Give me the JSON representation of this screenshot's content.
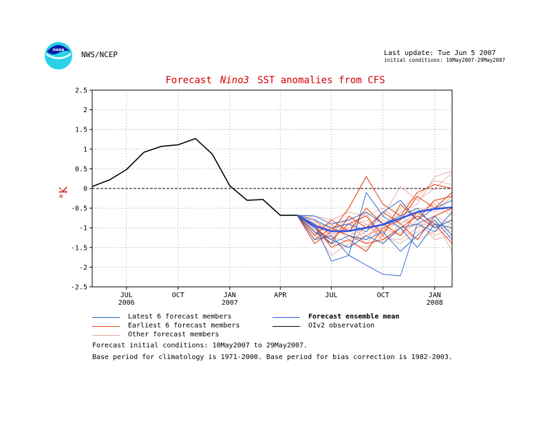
{
  "header": {
    "org": "NWS/NCEP",
    "last_update": "Last update: Tue Jun 5 2007",
    "initial_conditions": "initial conditions: 10May2007-29May2007",
    "logo_text": "noaa"
  },
  "title": {
    "prefix": "Forecast",
    "region": "Nino3",
    "suffix": "SST anomalies from CFS"
  },
  "colors": {
    "title": "#d40000",
    "latest": "#1f5fc8",
    "earliest": "#e5451a",
    "other": "#e8a79a",
    "mean": "#2f54e8",
    "observation": "#000000"
  },
  "legend": {
    "latest": "Latest 6 forecast members",
    "earliest": "Earliest 6 forecast members",
    "other": "Other forecast members",
    "mean": "Forecast ensemble mean",
    "observation": "OIv2 observation"
  },
  "notes": {
    "line1": "Forecast initial conditions: 10May2007 to 29May2007.",
    "line2": "Base period for climatology is 1971-2000. Base period for bias correction is 1982-2003."
  },
  "chart_data": {
    "type": "line",
    "title": "Forecast Nino3 SST anomalies from CFS",
    "ylabel": "°K",
    "ylim": [
      -2.5,
      2.5
    ],
    "yticks": [
      "2.5",
      "2",
      "1.5",
      "1",
      "0.5",
      "0",
      "-0.5",
      "-1",
      "-1.5",
      "-2",
      "-2.5"
    ],
    "xlim": [
      "2006-05-15",
      "2008-02-15"
    ],
    "xticks": [
      {
        "date": "2006-07-15",
        "label": "JUL",
        "sub": "2006"
      },
      {
        "date": "2006-10-15",
        "label": "OCT",
        "sub": ""
      },
      {
        "date": "2007-01-15",
        "label": "JAN",
        "sub": "2007"
      },
      {
        "date": "2007-04-15",
        "label": "APR",
        "sub": ""
      },
      {
        "date": "2007-07-15",
        "label": "JUL",
        "sub": ""
      },
      {
        "date": "2007-10-15",
        "label": "OCT",
        "sub": ""
      },
      {
        "date": "2008-01-15",
        "label": "JAN",
        "sub": "2008"
      }
    ],
    "grid": true,
    "zero_line": true,
    "observation": {
      "dates": [
        "2006-05-15",
        "2006-06-15",
        "2006-07-15",
        "2006-08-15",
        "2006-09-15",
        "2006-10-15",
        "2006-11-15",
        "2006-12-15",
        "2007-01-15",
        "2007-02-15",
        "2007-03-15",
        "2007-04-15",
        "2007-05-15"
      ],
      "values": [
        0.05,
        0.22,
        0.48,
        0.92,
        1.07,
        1.11,
        1.27,
        0.87,
        0.07,
        -0.3,
        -0.28,
        -0.68,
        -0.68
      ]
    },
    "forecast_dates": [
      "2007-05-15",
      "2007-06-15",
      "2007-07-15",
      "2007-08-15",
      "2007-09-15",
      "2007-10-15",
      "2007-11-15",
      "2007-12-15",
      "2008-01-15",
      "2008-02-15"
    ],
    "ensemble_mean": [
      -0.68,
      -0.95,
      -1.09,
      -1.08,
      -1.0,
      -0.92,
      -0.76,
      -0.6,
      -0.52,
      -0.48
    ],
    "latest_members": [
      [
        -0.68,
        -0.9,
        -1.85,
        -1.7,
        -1.95,
        -2.18,
        -2.22,
        -0.9,
        -0.7,
        -1.2
      ],
      [
        -0.68,
        -1.3,
        -1.2,
        -1.7,
        -0.1,
        -0.7,
        -1.0,
        -1.5,
        -0.9,
        -1.0
      ],
      [
        -0.68,
        -0.8,
        -1.0,
        -0.9,
        -1.1,
        -0.6,
        -0.3,
        -0.8,
        -0.5,
        -0.3
      ],
      [
        -0.68,
        -1.0,
        -1.4,
        -1.2,
        -1.3,
        -1.1,
        -1.6,
        -1.2,
        -0.8,
        -1.3
      ],
      [
        -0.68,
        -0.7,
        -0.9,
        -0.8,
        -0.6,
        -0.9,
        -0.7,
        -0.5,
        -1.0,
        -0.8
      ],
      [
        -0.68,
        -1.1,
        -1.3,
        -1.5,
        -1.2,
        -1.4,
        -1.0,
        -0.9,
        -1.1,
        -0.6
      ]
    ],
    "earliest_members": [
      [
        -0.68,
        -1.4,
        -1.1,
        -0.5,
        0.3,
        -0.4,
        -0.7,
        -0.1,
        0.1,
        0.0
      ],
      [
        -0.68,
        -1.0,
        -1.3,
        -0.9,
        -0.7,
        -1.2,
        -0.4,
        -0.8,
        -0.3,
        -0.2
      ],
      [
        -0.68,
        -1.2,
        -0.8,
        -1.1,
        -0.5,
        -0.9,
        -1.2,
        -0.6,
        -0.9,
        -1.4
      ],
      [
        -0.68,
        -0.9,
        -1.5,
        -1.3,
        -1.6,
        -1.0,
        -0.8,
        -0.2,
        -0.5,
        -0.1
      ],
      [
        -0.68,
        -1.1,
        -1.4,
        -0.7,
        -1.0,
        -0.6,
        -0.9,
        -1.3,
        -0.7,
        -0.5
      ],
      [
        -0.68,
        -1.3,
        -1.0,
        -1.2,
        -1.4,
        -1.3,
        -1.0,
        -0.7,
        -1.0,
        -0.8
      ]
    ],
    "other_members": [
      [
        -0.68,
        -0.8,
        -1.2,
        -1.0,
        -0.8,
        -1.1,
        -0.6,
        -0.4,
        0.3,
        0.45
      ],
      [
        -0.68,
        -1.0,
        -0.9,
        -1.3,
        -1.1,
        -0.7,
        0.05,
        -0.3,
        0.0,
        0.4
      ],
      [
        -0.68,
        -0.9,
        -1.1,
        -0.8,
        -1.2,
        -0.9,
        -0.7,
        -1.0,
        -0.8,
        -1.6
      ],
      [
        -0.68,
        -1.2,
        -1.4,
        -1.5,
        -0.9,
        -1.3,
        -1.1,
        -0.9,
        -1.2,
        -1.0
      ],
      [
        -0.68,
        -0.7,
        -0.8,
        -0.6,
        -0.7,
        -0.5,
        -0.9,
        -0.6,
        -0.4,
        -0.7
      ],
      [
        -0.68,
        -1.1,
        -1.7,
        -1.4,
        -1.5,
        -1.2,
        -1.4,
        -1.1,
        -0.9,
        -1.1
      ],
      [
        -0.68,
        -0.85,
        -1.0,
        -1.2,
        -1.0,
        -1.1,
        -0.8,
        -0.5,
        -0.6,
        -0.2
      ],
      [
        -0.68,
        -1.05,
        -1.3,
        -0.9,
        -1.3,
        -0.8,
        -1.0,
        -1.3,
        -1.1,
        -0.9
      ],
      [
        -0.68,
        -0.95,
        -1.15,
        -1.1,
        -0.6,
        -1.4,
        -0.9,
        -0.7,
        -0.3,
        -0.6
      ],
      [
        -0.68,
        -0.75,
        -1.25,
        -1.35,
        -1.2,
        -1.0,
        -1.2,
        -0.8,
        -1.3,
        -1.2
      ],
      [
        -0.68,
        -1.15,
        -0.95,
        -1.05,
        -1.4,
        -0.95,
        -0.5,
        -0.2,
        0.2,
        0.1
      ],
      [
        -0.68,
        -0.9,
        -1.05,
        -0.75,
        -0.9,
        -1.25,
        -1.3,
        -1.0,
        -0.7,
        -0.9
      ]
    ]
  }
}
